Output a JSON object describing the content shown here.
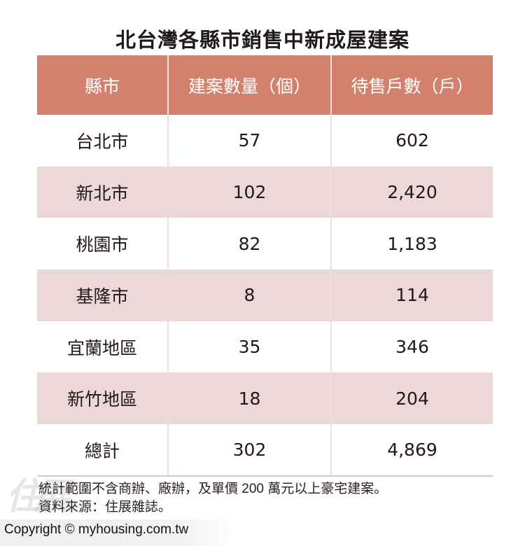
{
  "title": "北台灣各縣市銷售中新成屋建案",
  "table": {
    "headers": [
      "縣市",
      "建案數量（個）",
      "待售戶數（戶）"
    ],
    "rows": [
      {
        "region": "台北市",
        "projects": "57",
        "units": "602"
      },
      {
        "region": "新北市",
        "projects": "102",
        "units": "2,420"
      },
      {
        "region": "桃園市",
        "projects": "82",
        "units": "1,183"
      },
      {
        "region": "基隆市",
        "projects": "8",
        "units": "114"
      },
      {
        "region": "宜蘭地區",
        "projects": "35",
        "units": "346"
      },
      {
        "region": "新竹地區",
        "projects": "18",
        "units": "204"
      },
      {
        "region": "總計",
        "projects": "302",
        "units": "4,869"
      }
    ]
  },
  "notes": {
    "line1": "統計範圍不含商辦、廠辦，及單價 200 萬元以上豪宅建案。",
    "line2": "資料來源：住展雜誌。"
  },
  "watermark": "住展",
  "copyright": "Copyright © myhousing.com.tw",
  "colors": {
    "header_bg": "#d4806f",
    "shaded_row_bg": "#ecd8d9",
    "divider": "#f1dcdc"
  }
}
